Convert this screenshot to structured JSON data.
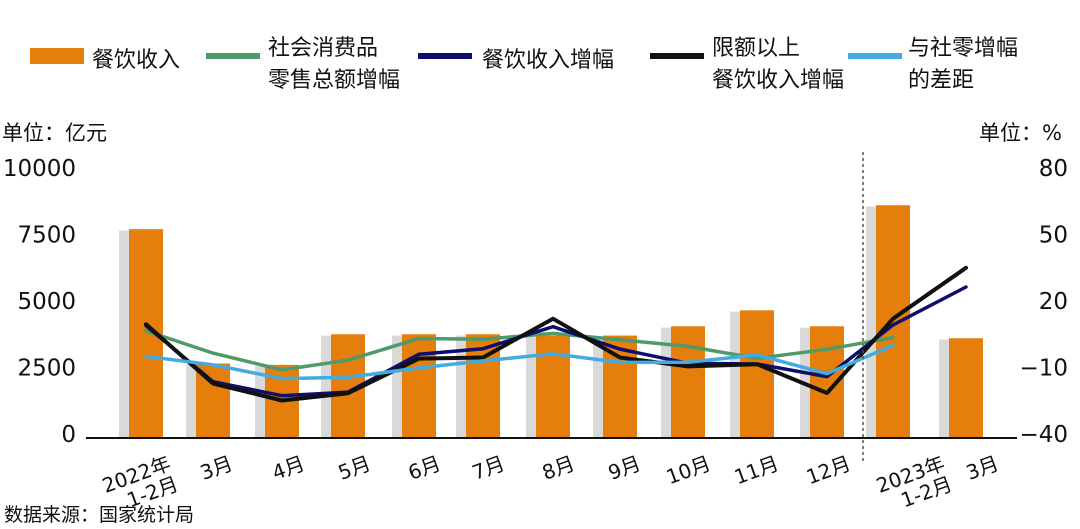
{
  "chart_data": {
    "type": "bar+line",
    "categories": [
      "2022年\n1-2月",
      "3月",
      "4月",
      "5月",
      "6月",
      "7月",
      "8月",
      "9月",
      "10月",
      "11月",
      "12月",
      "2023年\n1-2月",
      "3月"
    ],
    "left_axis": {
      "label": "单位：亿元",
      "ylim": [
        0,
        10000
      ],
      "ticks": [
        0,
        2500,
        5000,
        7500,
        10000
      ]
    },
    "right_axis": {
      "label": "单位：%",
      "ylim": [
        -40,
        80
      ],
      "ticks": [
        -40,
        -10,
        20,
        50,
        80
      ]
    },
    "bar_series": {
      "name": "餐饮收入",
      "color": "#E57E0A",
      "values": [
        7700,
        2650,
        2600,
        3750,
        3750,
        3750,
        3700,
        3700,
        4050,
        4650,
        4050,
        8600,
        3600
      ]
    },
    "ghost_bar_values": [
      7650,
      2600,
      2550,
      3700,
      3700,
      3700,
      3650,
      3650,
      4000,
      4600,
      4000,
      8550,
      3550
    ],
    "ghost_bar_color": "#d9d9d9",
    "line_series": [
      {
        "name": "社会消费品\n零售总额增幅",
        "color": "#4E9A6A",
        "values": [
          6.5,
          -3.5,
          -11.1,
          -6.7,
          3.1,
          2.7,
          5.4,
          2.5,
          -0.5,
          -5.9,
          -1.8,
          3.5,
          null
        ]
      },
      {
        "name": "餐饮收入增幅",
        "color": "#0E0E6E",
        "values": [
          8.9,
          -16.4,
          -22.7,
          -21.1,
          -4.0,
          -1.5,
          8.4,
          -1.7,
          -8.1,
          -8.4,
          -14.1,
          9.2,
          26.3
        ]
      },
      {
        "name": "限额以上\n餐饮收入增幅",
        "color": "#111111",
        "values": [
          9.5,
          -17.2,
          -24.9,
          -21.6,
          -6.0,
          -5.5,
          12.0,
          -5.5,
          -9.5,
          -8.5,
          -21.5,
          12.0,
          35.0
        ]
      },
      {
        "name": "与社零增幅\n的差距",
        "color": "#42ABE0",
        "values": [
          -5.0,
          -8.8,
          -15.0,
          -14.4,
          -10.2,
          -7.0,
          -3.8,
          -7.7,
          -7.6,
          -4.3,
          -12.8,
          0.0,
          null
        ]
      }
    ],
    "source_note": "数据来源：国家统计局"
  }
}
